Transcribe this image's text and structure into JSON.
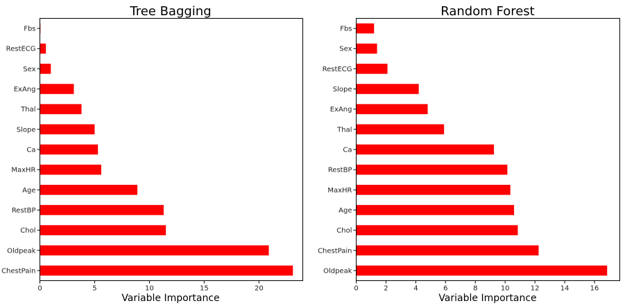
{
  "chart_data": [
    {
      "type": "bar",
      "orientation": "horizontal",
      "title": "Tree Bagging",
      "xlabel": "Variable Importance",
      "ylabel": "",
      "xlim": [
        0,
        24
      ],
      "xticks": [
        0,
        5,
        10,
        15,
        20
      ],
      "tick_labels": [
        "0",
        "5",
        "10",
        "15",
        "20"
      ],
      "categories": [
        "Fbs",
        "RestECG",
        "Sex",
        "ExAng",
        "Thal",
        "Slope",
        "Ca",
        "MaxHR",
        "Age",
        "RestBP",
        "Chol",
        "Oldpeak",
        "ChestPain"
      ],
      "values": [
        0.05,
        0.55,
        1.0,
        3.1,
        3.8,
        5.0,
        5.3,
        5.6,
        8.9,
        11.3,
        11.5,
        20.9,
        23.1
      ],
      "bar_color": "#ff0000",
      "grid": false,
      "legend": "none"
    },
    {
      "type": "bar",
      "orientation": "horizontal",
      "title": "Random Forest",
      "xlabel": "Variable Importance",
      "ylabel": "",
      "xlim": [
        0,
        17.7
      ],
      "xticks": [
        0,
        2,
        4,
        6,
        8,
        10,
        12,
        14,
        16
      ],
      "tick_labels": [
        "0",
        "2",
        "4",
        "6",
        "8",
        "10",
        "12",
        "14",
        "16"
      ],
      "categories": [
        "Fbs",
        "Sex",
        "RestECG",
        "Slope",
        "ExAng",
        "Thal",
        "Ca",
        "RestBP",
        "MaxHR",
        "Age",
        "Chol",
        "ChestPain",
        "Oldpeak"
      ],
      "values": [
        1.2,
        1.4,
        2.1,
        4.2,
        4.8,
        5.9,
        9.25,
        10.15,
        10.35,
        10.6,
        10.85,
        12.25,
        16.85
      ],
      "bar_color": "#ff0000",
      "grid": false,
      "legend": "none"
    }
  ]
}
